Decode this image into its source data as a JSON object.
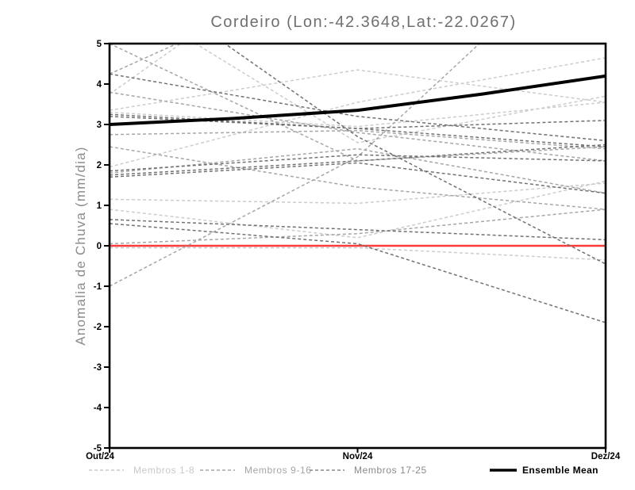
{
  "page": {
    "background": "#ffffff"
  },
  "chart_data": {
    "type": "line",
    "title": "Cordeiro (Lon:-42.3648,Lat:-22.0267)",
    "ylabel": "Anomalia de Chuva (mm/dia)",
    "xlabel": "",
    "x_categories": [
      "Out/24",
      "Nov/24",
      "Dez/24"
    ],
    "ylim": [
      -5,
      5
    ],
    "yticks": [
      -5,
      -4,
      -3,
      -2,
      -1,
      0,
      1,
      2,
      3,
      4,
      5
    ],
    "grid": false,
    "frame": "full-box",
    "axis_color": "#000000",
    "tick_label_color": "#000000",
    "title_color": "#6f6f6f",
    "ylabel_color": "#8c8c8c",
    "zero_line": {
      "value": 0,
      "color": "#fa3c3c",
      "style": "solid"
    },
    "line_style_members": "dashed",
    "member_groups": [
      {
        "name": "Membros 1-8",
        "color": "#cccccc",
        "members": [
          {
            "values": [
              3.3,
              2.95,
              3.55
            ]
          },
          {
            "values": [
              1.95,
              3.55,
              4.65
            ]
          },
          {
            "values": [
              1.15,
              1.05,
              1.55
            ]
          },
          {
            "values": [
              -0.05,
              -0.05,
              -0.35
            ]
          },
          {
            "values": [
              6.3,
              2.55,
              3.7
            ]
          },
          {
            "values": [
              3.75,
              8.1,
              5.6
            ]
          },
          {
            "values": [
              0.9,
              0.2,
              1.6
            ]
          },
          {
            "values": [
              3.35,
              4.35,
              3.55
            ]
          }
        ]
      },
      {
        "name": "Membros 9-16",
        "color": "#a6a6a6",
        "members": [
          {
            "values": [
              4.25,
              7.0,
              5.5
            ]
          },
          {
            "values": [
              5.0,
              2.1,
              2.45
            ]
          },
          {
            "values": [
              1.8,
              2.4,
              1.3
            ]
          },
          {
            "values": [
              -1.0,
              2.2,
              7.9
            ]
          },
          {
            "values": [
              2.45,
              1.45,
              0.9
            ]
          },
          {
            "values": [
              3.8,
              2.8,
              2.1
            ]
          },
          {
            "values": [
              0.05,
              0.3,
              0.9
            ]
          },
          {
            "values": [
              2.75,
              2.85,
              2.4
            ]
          }
        ]
      },
      {
        "name": "Membros 17-25",
        "color": "#717171",
        "members": [
          {
            "values": [
              0.65,
              0.4,
              0.15
            ]
          },
          {
            "values": [
              1.75,
              2.1,
              2.5
            ]
          },
          {
            "values": [
              3.25,
              2.9,
              3.1
            ]
          },
          {
            "values": [
              0.55,
              0.05,
              -1.9
            ]
          },
          {
            "values": [
              7.0,
              2.7,
              -0.45
            ]
          },
          {
            "values": [
              1.7,
              2.05,
              1.3
            ]
          },
          {
            "values": [
              3.2,
              2.9,
              2.45
            ]
          },
          {
            "values": [
              1.85,
              2.25,
              2.1
            ]
          },
          {
            "values": [
              4.25,
              3.2,
              2.6
            ]
          }
        ]
      }
    ],
    "ensemble_mean": {
      "name": "Ensemble Mean",
      "color": "#000000",
      "x_months": [
        0,
        0.5,
        1,
        1.5,
        2
      ],
      "values": [
        3.0,
        3.15,
        3.35,
        3.75,
        4.2
      ]
    },
    "legend": [
      {
        "label": "Membros 1-8",
        "color": "#c9c9c9",
        "style": "dashed"
      },
      {
        "label": "Membros 9-16",
        "color": "#a6a6a6",
        "style": "dashed"
      },
      {
        "label": "Membros 17-25",
        "color": "#8a8a8a",
        "style": "dashed"
      },
      {
        "label": "Ensemble Mean",
        "color": "#000000",
        "style": "solid-thick"
      }
    ]
  }
}
